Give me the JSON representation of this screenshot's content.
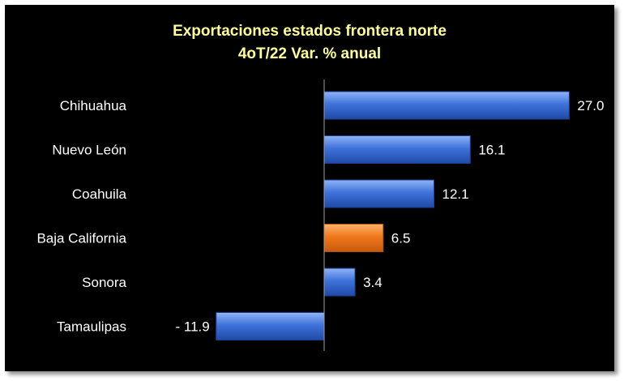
{
  "chart_data": {
    "type": "bar",
    "orientation": "horizontal",
    "title": "Exportaciones estados frontera norte",
    "subtitle": "4oT/22 Var. % anual",
    "categories": [
      "Chihuahua",
      "Nuevo León",
      "Coahuila",
      "Baja California",
      "Sonora",
      "Tamaulipas"
    ],
    "values": [
      27.0,
      16.1,
      12.1,
      6.5,
      3.4,
      -11.9
    ],
    "value_labels": [
      "27.0",
      "16.1",
      "12.1",
      "6.5",
      "3.4",
      "- 11.9"
    ],
    "highlight_category": "Baja California",
    "xlim": [
      -20,
      30
    ],
    "grid": false,
    "legend": "none"
  },
  "colors": {
    "background": "#000000",
    "title": "#ffff99",
    "text": "#ffffff",
    "bar": "#3a6fd8",
    "bar_highlight": "#f07a1e",
    "axis": "#9a9a9a"
  }
}
